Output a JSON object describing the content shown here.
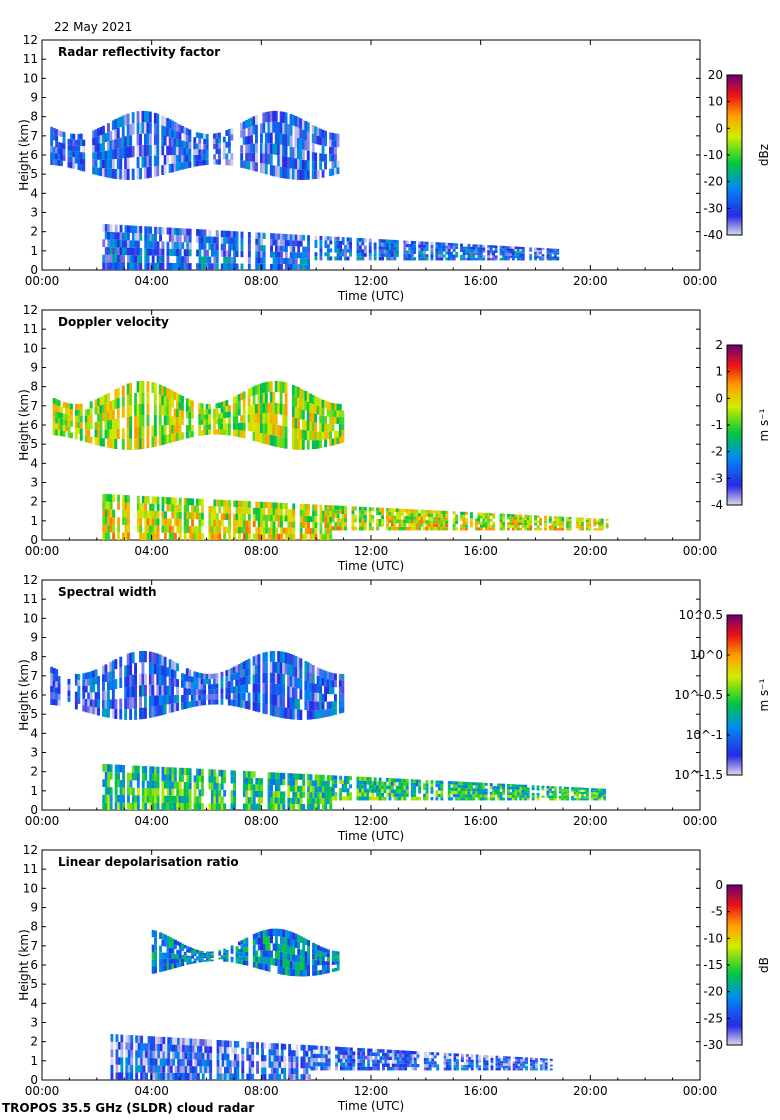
{
  "header": {
    "date": "22 May 2021"
  },
  "footer": {
    "instrument": "TROPOS 35.5 GHz (SLDR) cloud radar"
  },
  "chart_data": [
    {
      "type": "heatmap",
      "title": "Radar reflectivity factor",
      "xlabel": "Time (UTC)",
      "ylabel": "Height (km)",
      "xticks": [
        "00:00",
        "04:00",
        "08:00",
        "12:00",
        "16:00",
        "20:00",
        "00:00"
      ],
      "xlim_hours": [
        0,
        24
      ],
      "yticks": [
        0,
        1,
        2,
        3,
        4,
        5,
        6,
        7,
        8,
        9,
        10,
        11,
        12
      ],
      "ylim": [
        0,
        12
      ],
      "colorbar": {
        "label": "dBz",
        "min": -40,
        "max": 20,
        "ticks": [
          "20",
          "10",
          "0",
          "-10",
          "-20",
          "-30",
          "-40"
        ]
      },
      "cloud_layers": [
        {
          "name": "upper cloud",
          "t_start_h": 0.3,
          "t_end_h": 11.0,
          "base_km": 4.5,
          "top_km": 8.0,
          "typical_value": -32
        },
        {
          "name": "lower cloud",
          "t_start_h": 2.2,
          "t_end_h": 18.8,
          "base_km": 0.0,
          "top_km": 2.4,
          "typical_value": -33
        }
      ]
    },
    {
      "type": "heatmap",
      "title": "Doppler velocity",
      "xlabel": "Time (UTC)",
      "ylabel": "Height (km)",
      "xticks": [
        "00:00",
        "04:00",
        "08:00",
        "12:00",
        "16:00",
        "20:00",
        "00:00"
      ],
      "xlim_hours": [
        0,
        24
      ],
      "yticks": [
        0,
        1,
        2,
        3,
        4,
        5,
        6,
        7,
        8,
        9,
        10,
        11,
        12
      ],
      "ylim": [
        0,
        12
      ],
      "colorbar": {
        "label": "m s⁻¹",
        "min": -4,
        "max": 2,
        "ticks": [
          "2",
          "1",
          "0",
          "-1",
          "-2",
          "-3",
          "-4"
        ]
      },
      "cloud_layers": [
        {
          "name": "upper cloud",
          "t_start_h": 0.3,
          "t_end_h": 11.0,
          "base_km": 4.5,
          "top_km": 8.0,
          "typical_value": -0.7
        },
        {
          "name": "lower cloud",
          "t_start_h": 2.2,
          "t_end_h": 20.6,
          "base_km": 0.0,
          "top_km": 2.4,
          "typical_value": -0.8
        }
      ]
    },
    {
      "type": "heatmap",
      "title": "Spectral width",
      "xlabel": "Time (UTC)",
      "ylabel": "Height (km)",
      "xticks": [
        "00:00",
        "04:00",
        "08:00",
        "12:00",
        "16:00",
        "20:00",
        "00:00"
      ],
      "xlim_hours": [
        0,
        24
      ],
      "yticks": [
        0,
        1,
        2,
        3,
        4,
        5,
        6,
        7,
        8,
        9,
        10,
        11,
        12
      ],
      "ylim": [
        0,
        12
      ],
      "colorbar": {
        "label": "m s⁻¹",
        "scale": "log10",
        "min": -1.5,
        "max": 0.5,
        "ticks": [
          "10^0.5",
          "10^0",
          "10^-0.5",
          "10^-1",
          "10^-1.5"
        ]
      },
      "cloud_layers": [
        {
          "name": "upper cloud",
          "t_start_h": 0.3,
          "t_end_h": 11.0,
          "base_km": 4.5,
          "top_km": 8.0,
          "typical_value": -1.2
        },
        {
          "name": "lower cloud",
          "t_start_h": 2.2,
          "t_end_h": 20.6,
          "base_km": 0.0,
          "top_km": 2.4,
          "typical_value": -0.8
        }
      ]
    },
    {
      "type": "heatmap",
      "title": "Linear depolarisation ratio",
      "xlabel": "Time (UTC)",
      "ylabel": "Height (km)",
      "xticks": [
        "00:00",
        "04:00",
        "08:00",
        "12:00",
        "16:00",
        "20:00",
        "00:00"
      ],
      "xlim_hours": [
        0,
        24
      ],
      "yticks": [
        0,
        1,
        2,
        3,
        4,
        5,
        6,
        7,
        8,
        9,
        10,
        11,
        12
      ],
      "ylim": [
        0,
        12
      ],
      "colorbar": {
        "label": "dB",
        "min": -30,
        "max": 0,
        "ticks": [
          "0",
          "-5",
          "-10",
          "-15",
          "-20",
          "-25",
          "-30"
        ]
      },
      "cloud_layers": [
        {
          "name": "upper cloud",
          "t_start_h": 4.0,
          "t_end_h": 10.8,
          "base_km": 5.2,
          "top_km": 7.6,
          "typical_value": -22
        },
        {
          "name": "lower cloud",
          "t_start_h": 2.5,
          "t_end_h": 18.6,
          "base_km": 0.0,
          "top_km": 2.4,
          "typical_value": -28
        }
      ]
    }
  ]
}
